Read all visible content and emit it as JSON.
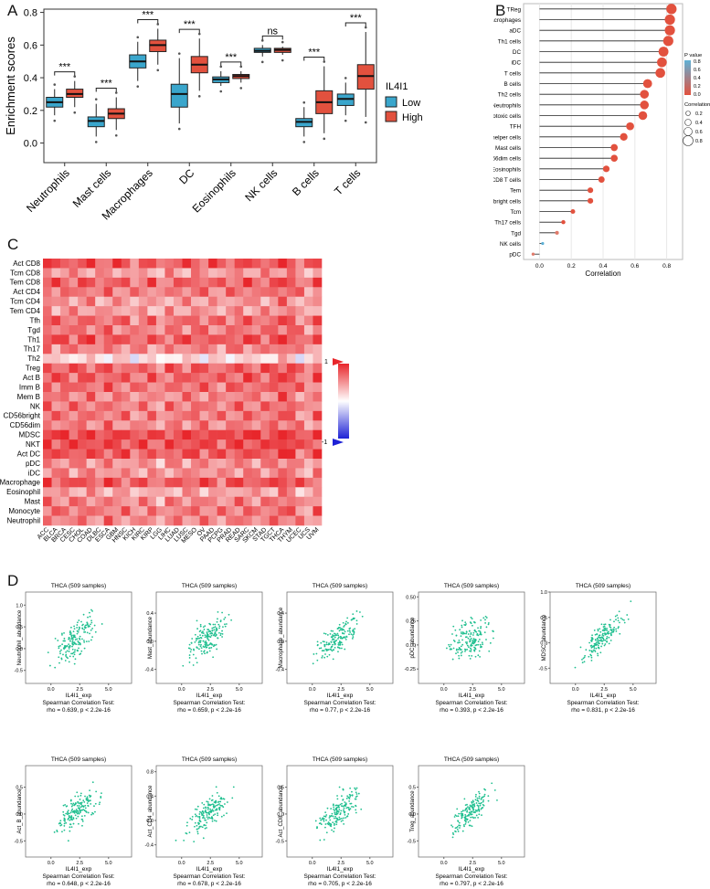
{
  "panel_labels": [
    "A",
    "B",
    "C",
    "D"
  ],
  "colors": {
    "low": "#3aa6cc",
    "high": "#e2513e",
    "heat_high": "#e8262b",
    "heat_low": "#1e22d6",
    "scatter": "#1fbf8f"
  },
  "chart_data": [
    {
      "id": "A",
      "type": "box",
      "ylabel": "Enrichment scores",
      "ylim": [
        -0.12,
        0.82
      ],
      "yticks": [
        "0.0",
        "0.2",
        "0.4",
        "0.6",
        "0.8"
      ],
      "legend_title": "IL4I1",
      "legend_placement": "right",
      "series_names": [
        "Low",
        "High"
      ],
      "categories": [
        "Neutrophils",
        "Mast cells",
        "Macrophages",
        "DC",
        "Eosinophils",
        "NK cells",
        "B cells",
        "T cells"
      ],
      "significance": [
        "***",
        "***",
        "***",
        "***",
        "***",
        "ns",
        "***",
        "***"
      ],
      "boxes_low": [
        {
          "q1": 0.22,
          "med": 0.25,
          "q3": 0.28,
          "wlo": 0.17,
          "whi": 0.33
        },
        {
          "q1": 0.1,
          "med": 0.135,
          "q3": 0.16,
          "wlo": 0.04,
          "whi": 0.24
        },
        {
          "q1": 0.46,
          "med": 0.5,
          "q3": 0.54,
          "wlo": 0.38,
          "whi": 0.62
        },
        {
          "q1": 0.22,
          "med": 0.3,
          "q3": 0.36,
          "wlo": 0.12,
          "whi": 0.52
        },
        {
          "q1": 0.37,
          "med": 0.39,
          "q3": 0.405,
          "wlo": 0.35,
          "whi": 0.44
        },
        {
          "q1": 0.555,
          "med": 0.565,
          "q3": 0.58,
          "wlo": 0.53,
          "whi": 0.6
        },
        {
          "q1": 0.1,
          "med": 0.13,
          "q3": 0.15,
          "wlo": 0.04,
          "whi": 0.22
        },
        {
          "q1": 0.23,
          "med": 0.27,
          "q3": 0.3,
          "wlo": 0.17,
          "whi": 0.37
        }
      ],
      "boxes_high": [
        {
          "q1": 0.28,
          "med": 0.3,
          "q3": 0.33,
          "wlo": 0.22,
          "whi": 0.38
        },
        {
          "q1": 0.15,
          "med": 0.18,
          "q3": 0.21,
          "wlo": 0.08,
          "whi": 0.28
        },
        {
          "q1": 0.56,
          "med": 0.6,
          "q3": 0.63,
          "wlo": 0.48,
          "whi": 0.7
        },
        {
          "q1": 0.43,
          "med": 0.48,
          "q3": 0.53,
          "wlo": 0.32,
          "whi": 0.64
        },
        {
          "q1": 0.395,
          "med": 0.41,
          "q3": 0.42,
          "wlo": 0.37,
          "whi": 0.44
        },
        {
          "q1": 0.555,
          "med": 0.57,
          "q3": 0.58,
          "wlo": 0.54,
          "whi": 0.59
        },
        {
          "q1": 0.18,
          "med": 0.25,
          "q3": 0.32,
          "wlo": 0.06,
          "whi": 0.47
        },
        {
          "q1": 0.33,
          "med": 0.41,
          "q3": 0.48,
          "wlo": 0.16,
          "whi": 0.68
        }
      ]
    },
    {
      "id": "B",
      "type": "lollipop",
      "xlabel": "Correlation",
      "xlim": [
        -0.1,
        0.9
      ],
      "xticks": [
        "0.0",
        "0.2",
        "0.4",
        "0.6",
        "0.8"
      ],
      "legend_pvalue_title": "P value",
      "legend_pvalue_ticks": [
        "0.8",
        "0.6",
        "0.4",
        "0.2",
        "0.0"
      ],
      "legend_size_title": "Correlation",
      "legend_size_ticks": [
        "0.2",
        "0.4",
        "0.6",
        "0.8"
      ],
      "categories": [
        "TReg",
        "Macrophages",
        "aDC",
        "Th1 cells",
        "DC",
        "iDC",
        "T cells",
        "B cells",
        "Th2 cells",
        "Neutrophils",
        "Cytotoxic cells",
        "TFH",
        "T helper cells",
        "Mast cells",
        "NK CD56dim cells",
        "Eosinophils",
        "CD8 T cells",
        "Tem",
        "NK CD56bright cells",
        "Tcm",
        "Th17 cells",
        "Tgd",
        "NK cells",
        "pDC"
      ],
      "values": [
        0.83,
        0.82,
        0.82,
        0.81,
        0.78,
        0.77,
        0.76,
        0.68,
        0.66,
        0.66,
        0.65,
        0.57,
        0.53,
        0.47,
        0.47,
        0.42,
        0.39,
        0.32,
        0.32,
        0.21,
        0.15,
        0.11,
        0.02,
        -0.04
      ],
      "pvalues": [
        0,
        0,
        0,
        0,
        0,
        0,
        0,
        0,
        0,
        0,
        0,
        0,
        0,
        0,
        0,
        0,
        0,
        0,
        0,
        0,
        0,
        0.02,
        0.6,
        0.3
      ]
    },
    {
      "id": "C",
      "type": "heatmap",
      "colorbar_ticks": [
        "1",
        "-1"
      ],
      "rows": [
        "Act CD8",
        "Tcm CD8",
        "Tem CD8",
        "Act CD4",
        "Tcm CD4",
        "Tem CD4",
        "Tfh",
        "Tgd",
        "Th1",
        "Th17",
        "Th2",
        "Treg",
        "Act B",
        "Imm B",
        "Mem B",
        "NK",
        "CD56bright",
        "CD56dim",
        "MDSC",
        "NKT",
        "Act DC",
        "pDC",
        "iDC",
        "Macrophage",
        "Eosinophil",
        "Mast",
        "Monocyte",
        "Neutrophil"
      ],
      "cols": [
        "ACC",
        "BLCA",
        "BRCA",
        "CESC",
        "CHOL",
        "COAD",
        "DLBC",
        "ESCA",
        "GBM",
        "HNSC",
        "KICH",
        "KIRC",
        "KIRP",
        "LGG",
        "LIHC",
        "LUAD",
        "LUSC",
        "MESO",
        "OV",
        "PAAD",
        "PCPG",
        "PRAD",
        "READ",
        "SARC",
        "SKCM",
        "STAD",
        "TGCT",
        "THCA",
        "THYM",
        "UCEC",
        "UCS",
        "UVM"
      ],
      "row_means": [
        0.75,
        0.45,
        0.7,
        0.6,
        0.45,
        0.45,
        0.65,
        0.6,
        0.75,
        0.55,
        0.15,
        0.7,
        0.7,
        0.65,
        0.55,
        0.6,
        0.6,
        0.55,
        0.85,
        0.8,
        0.75,
        0.5,
        0.5,
        0.75,
        0.4,
        0.55,
        0.6,
        0.55
      ],
      "col_offsets": [
        0.1,
        0,
        0.05,
        0,
        0.05,
        0.05,
        -0.05,
        0.05,
        0,
        0,
        -0.1,
        0,
        0,
        -0.15,
        0,
        0,
        0,
        0.05,
        0,
        0,
        -0.05,
        0,
        0.05,
        0.05,
        0,
        0,
        0.05,
        0.15,
        0.1,
        -0.05,
        -0.15,
        0.05
      ]
    },
    {
      "id": "D",
      "type": "scatter",
      "xlabel": "IL4I1_exp",
      "xticks": [
        "0.0",
        "2.5",
        "5.0"
      ],
      "plots": [
        {
          "title": "THCA (509 samples)",
          "ylabel": "Neutrophil_abundance",
          "yticks": [
            "1.0",
            "0.5",
            "0.0",
            "-0.5"
          ],
          "ylim": [
            -0.8,
            1.3
          ],
          "test": "Spearman Correlation Test:",
          "stat": "rho = 0.639, p < 2.2e-16",
          "rho": 0.639
        },
        {
          "title": "THCA (509 samples)",
          "ylabel": "Mast_abundance",
          "yticks": [
            "0.4",
            "0.0",
            "-0.4"
          ],
          "ylim": [
            -0.6,
            0.7
          ],
          "test": "Spearman Correlation Test:",
          "stat": "rho = 0.659, p < 2.2e-16",
          "rho": 0.659
        },
        {
          "title": "THCA (509 samples)",
          "ylabel": "Macrophage_abundance",
          "yticks": [
            "0.4",
            "0.0",
            "-0.4"
          ],
          "ylim": [
            -0.6,
            0.7
          ],
          "test": "Spearman Correlation Test:",
          "stat": "rho = 0.77, p < 2.2e-16",
          "rho": 0.77
        },
        {
          "title": "THCA (509 samples)",
          "ylabel": "pDC_abundance",
          "yticks": [
            "0.50",
            "0.25",
            "0.00",
            "-0.25"
          ],
          "ylim": [
            -0.4,
            0.55
          ],
          "test": "Spearman Correlation Test:",
          "stat": "rho = 0.393, p < 2.2e-16",
          "rho": 0.393
        },
        {
          "title": "THCA (509 samples)",
          "ylabel": "MDSC_abundance",
          "yticks": [
            "1.0",
            "0.5",
            "0.0",
            "-0.5"
          ],
          "ylim": [
            -0.8,
            1.0
          ],
          "test": "Spearman Correlation Test:",
          "stat": "rho = 0.831, p < 2.2e-16",
          "rho": 0.831
        },
        {
          "title": "THCA (509 samples)",
          "ylabel": "Act_B_abundance",
          "yticks": [
            "0.5",
            "0.0",
            "-0.5"
          ],
          "ylim": [
            -0.8,
            0.9
          ],
          "test": "Spearman Correlation Test:",
          "stat": "rho = 0.648, p < 2.2e-16",
          "rho": 0.648
        },
        {
          "title": "THCA (509 samples)",
          "ylabel": "Act_CD4_abundance",
          "yticks": [
            "0.8",
            "0.4",
            "0.0",
            "-0.4"
          ],
          "ylim": [
            -0.6,
            0.9
          ],
          "test": "Spearman Correlation Test:",
          "stat": "rho = 0.678, p < 2.2e-16",
          "rho": 0.678
        },
        {
          "title": "THCA (509 samples)",
          "ylabel": "Act_CD8_abundance",
          "yticks": [
            "0.5",
            "0.0",
            "-0.5"
          ],
          "ylim": [
            -0.8,
            0.9
          ],
          "test": "Spearman Correlation Test:",
          "stat": "rho = 0.705, p < 2.2e-16",
          "rho": 0.705
        },
        {
          "title": "THCA (509 samples)",
          "ylabel": "Treg_abundance",
          "yticks": [
            "0.5",
            "0.0",
            "-0.5"
          ],
          "ylim": [
            -0.8,
            0.9
          ],
          "test": "Spearman Correlation Test:",
          "stat": "rho = 0.797, p < 2.2e-16",
          "rho": 0.797
        }
      ]
    }
  ]
}
